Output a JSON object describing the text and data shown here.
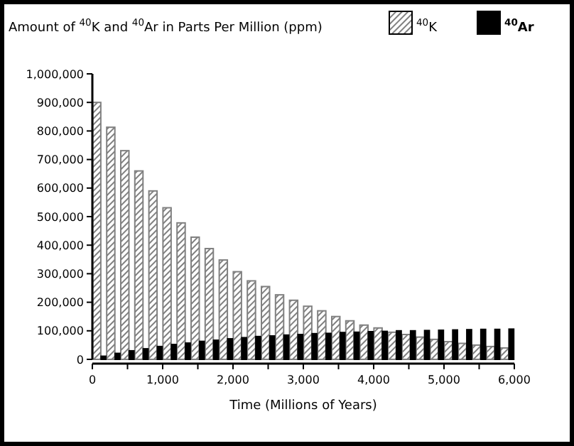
{
  "chart_data": {
    "type": "bar",
    "title": "Amount of $^{40}$K and $^{40}$Ar in Parts Per Million (ppm)",
    "xlabel": "Time (Millions of Years)",
    "x": [
      100,
      300,
      500,
      700,
      900,
      1100,
      1300,
      1500,
      1700,
      1900,
      2100,
      2300,
      2500,
      2700,
      2900,
      3100,
      3300,
      3500,
      3700,
      3900,
      4100,
      4300,
      4500,
      4700,
      4900,
      5100,
      5300,
      5500,
      5700,
      5900
    ],
    "series": [
      {
        "name": "$^{40}$K",
        "color": "#808080",
        "values": [
          900000,
          813000,
          731000,
          660000,
          590000,
          531000,
          478000,
          428000,
          388000,
          348000,
          307000,
          275000,
          255000,
          226000,
          207000,
          186000,
          170000,
          150000,
          135000,
          120000,
          110000,
          95000,
          87000,
          78000,
          70000,
          62000,
          56000,
          50000,
          45000,
          40000
        ]
      },
      {
        "name": "$^{40}$Ar",
        "color": "#000000",
        "values": [
          11000,
          21000,
          30000,
          37000,
          45000,
          52000,
          57000,
          63000,
          67000,
          72000,
          76000,
          80000,
          82000,
          85000,
          87000,
          90000,
          91000,
          94000,
          95000,
          97000,
          98000,
          100000,
          100000,
          101000,
          102000,
          103000,
          104000,
          105000,
          105000,
          106000
        ]
      }
    ],
    "xlim": [
      0,
      6000
    ],
    "xticks": [
      {
        "value": 0,
        "label": "0"
      },
      {
        "value": 500,
        "label": null
      },
      {
        "value": 1000,
        "label": "1,000"
      },
      {
        "value": 1500,
        "label": null
      },
      {
        "value": 2000,
        "label": "2,000"
      },
      {
        "value": 2500,
        "label": null
      },
      {
        "value": 3000,
        "label": "3,000"
      },
      {
        "value": 3500,
        "label": null
      },
      {
        "value": 4000,
        "label": "4,000"
      },
      {
        "value": 4500,
        "label": null
      },
      {
        "value": 5000,
        "label": "5,000"
      },
      {
        "value": 5500,
        "label": null
      },
      {
        "value": 6000,
        "label": "6,000"
      }
    ],
    "ylim": [
      0,
      1000000
    ],
    "yticks": [
      {
        "value": 0,
        "label": "0"
      },
      {
        "value": 100000,
        "label": "100,000"
      },
      {
        "value": 200000,
        "label": "200,000"
      },
      {
        "value": 300000,
        "label": "300,000"
      },
      {
        "value": 400000,
        "label": "400,000"
      },
      {
        "value": 500000,
        "label": "500,000"
      },
      {
        "value": 600000,
        "label": "600,000"
      },
      {
        "value": 700000,
        "label": "700,000"
      },
      {
        "value": 800000,
        "label": "800,000"
      },
      {
        "value": 900000,
        "label": "900,000"
      },
      {
        "value": 1000000,
        "label": "1,000,000"
      }
    ],
    "legend": "top right",
    "grid": false
  }
}
